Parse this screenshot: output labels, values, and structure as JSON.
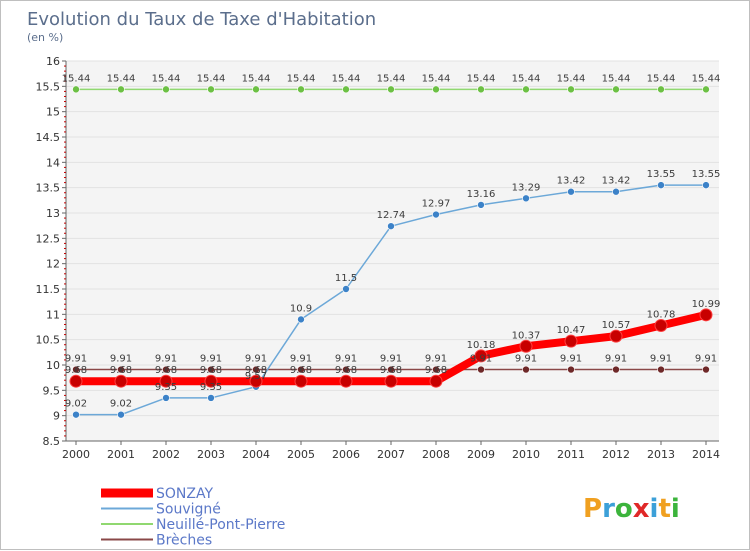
{
  "chart_data": {
    "type": "line",
    "title": "Evolution du Taux de Taxe d'Habitation",
    "subtitle": "(en %)",
    "x": [
      "2000",
      "2001",
      "2002",
      "2003",
      "2004",
      "2005",
      "2006",
      "2007",
      "2008",
      "2009",
      "2010",
      "2011",
      "2012",
      "2013",
      "2014"
    ],
    "y_ticks": [
      "8.5",
      "9",
      "9.5",
      "10",
      "10.5",
      "11",
      "11.5",
      "12",
      "12.5",
      "13",
      "13.5",
      "14",
      "14.5",
      "15",
      "15.5",
      "16"
    ],
    "ylim": [
      8.5,
      16
    ],
    "grid": "horizontal",
    "legend_position": "bottom-left",
    "series": [
      {
        "name": "SONZAY",
        "color": "#ff0000",
        "marker": "#c80000",
        "values": [
          9.68,
          9.68,
          9.68,
          9.68,
          9.68,
          9.68,
          9.68,
          9.68,
          9.68,
          10.18,
          10.37,
          10.47,
          10.57,
          10.78,
          10.99
        ],
        "labels": [
          "9.68",
          "9.68",
          "9.68",
          "9.68",
          "9.68",
          "9.68",
          "9.68",
          "9.68",
          "9.68",
          "10.18",
          "10.37",
          "10.47",
          "10.57",
          "10.78",
          "10.99"
        ]
      },
      {
        "name": "Souvigné",
        "color": "#6ca8d8",
        "marker": "#3c82c8",
        "values": [
          9.02,
          9.02,
          9.35,
          9.35,
          9.57,
          10.9,
          11.5,
          12.74,
          12.97,
          13.16,
          13.29,
          13.42,
          13.42,
          13.55,
          13.55
        ],
        "labels": [
          "9.02",
          "9.02",
          "9.35",
          "9.35",
          "9.57",
          "10.9",
          "11.5",
          "12.74",
          "12.97",
          "13.16",
          "13.29",
          "13.42",
          "13.42",
          "13.55",
          "13.55"
        ]
      },
      {
        "name": "Neuillé-Pont-Pierre",
        "color": "#90d870",
        "marker": "#6cc044",
        "values": [
          15.44,
          15.44,
          15.44,
          15.44,
          15.44,
          15.44,
          15.44,
          15.44,
          15.44,
          15.44,
          15.44,
          15.44,
          15.44,
          15.44,
          15.44
        ],
        "labels": [
          "15.44",
          "15.44",
          "15.44",
          "15.44",
          "15.44",
          "15.44",
          "15.44",
          "15.44",
          "15.44",
          "15.44",
          "15.44",
          "15.44",
          "15.44",
          "15.44",
          "15.44"
        ]
      },
      {
        "name": "Brèches",
        "color": "#8a4848",
        "marker": "#6e2828",
        "values": [
          9.91,
          9.91,
          9.91,
          9.91,
          9.91,
          9.91,
          9.91,
          9.91,
          9.91,
          9.91,
          9.91,
          9.91,
          9.91,
          9.91,
          9.91
        ],
        "labels": [
          "9.91",
          "9.91",
          "9.91",
          "9.91",
          "9.91",
          "9.91",
          "9.91",
          "9.91",
          "9.91",
          "9.91",
          "9.91",
          "9.91",
          "9.91",
          "9.91",
          "9.91"
        ]
      }
    ]
  },
  "logo": {
    "letters": [
      "P",
      "r",
      "o",
      "x",
      "i",
      "t",
      "i"
    ],
    "colors": [
      "#f0a020",
      "#3ca0d8",
      "#3cb43c",
      "#e02828",
      "#3ca0d8",
      "#f0a020",
      "#3cb43c"
    ]
  }
}
